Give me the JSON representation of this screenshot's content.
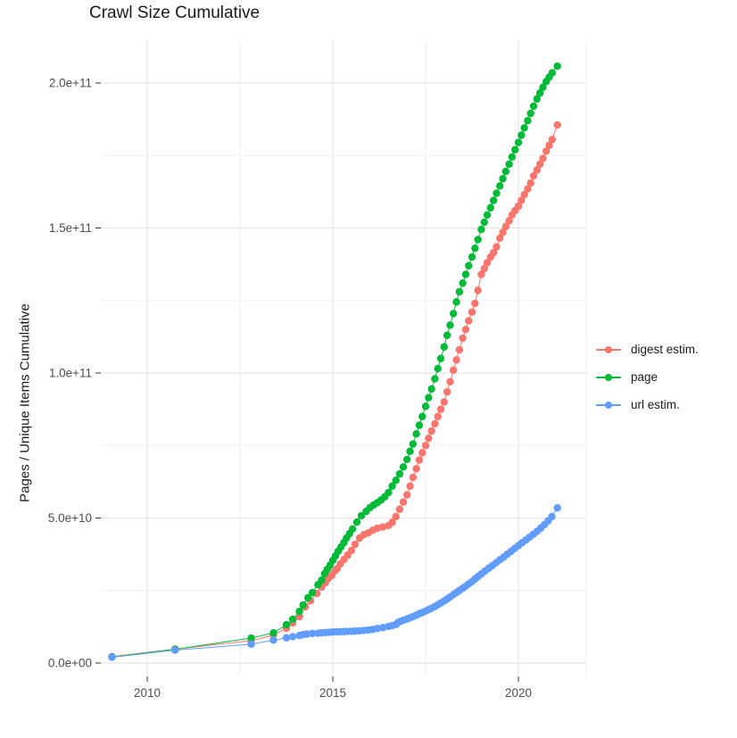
{
  "title": "Crawl Size Cumulative",
  "y_axis_title": "Pages / Unique Items Cumulative",
  "colors": {
    "digest": "#F8766D",
    "page": "#00BA38",
    "url": "#619CFF",
    "grid_major": "#E5E5E5",
    "grid_minor": "#F1F1F1",
    "tick": "#333333",
    "tick_label": "#4D4D4D",
    "background": "#FFFFFF"
  },
  "legend": {
    "items": [
      {
        "label": "digest estim.",
        "color": "#F8766D"
      },
      {
        "label": "page",
        "color": "#00BA38"
      },
      {
        "label": "url estim.",
        "color": "#619CFF"
      }
    ]
  },
  "axes": {
    "x": {
      "tick_labels": [
        "2010",
        "2015",
        "2020"
      ],
      "tick_values": [
        2010,
        2015,
        2020
      ],
      "minor_values": [
        2012.5,
        2017.5
      ]
    },
    "y": {
      "tick_labels": [
        "0.0e+00",
        "5.0e+10",
        "1.0e+11",
        "1.5e+11",
        "2.0e+11"
      ],
      "tick_values": [
        0,
        50,
        100,
        150,
        200
      ],
      "minor_values": [
        25,
        75,
        125,
        175
      ]
    }
  },
  "chart_data": {
    "type": "scatter",
    "title": "Crawl Size Cumulative",
    "xlabel": "",
    "ylabel": "Pages / Unique Items Cumulative",
    "unit": "billions of pages / unique items (1 = 1e9)",
    "x_range": [
      2008.75,
      2021.83
    ],
    "y_range_billions": [
      0,
      214
    ],
    "grid": true,
    "legend_position": "right",
    "series": [
      {
        "name": "digest estim.",
        "color": "#F8766D",
        "points": [
          [
            2009.05,
            2.2
          ],
          [
            2010.75,
            4.8
          ],
          [
            2012.8,
            7.7
          ],
          [
            2013.4,
            9.7
          ],
          [
            2013.75,
            12.0
          ],
          [
            2013.92,
            13.8
          ],
          [
            2014.1,
            16.0
          ],
          [
            2014.26,
            19.4
          ],
          [
            2014.4,
            21.5
          ],
          [
            2014.57,
            24.0
          ],
          [
            2014.7,
            26.2
          ],
          [
            2014.8,
            27.7
          ],
          [
            2014.88,
            29.2
          ],
          [
            2014.97,
            30.2
          ],
          [
            2015.05,
            31.7
          ],
          [
            2015.12,
            32.6
          ],
          [
            2015.2,
            34.2
          ],
          [
            2015.3,
            35.7
          ],
          [
            2015.4,
            37.2
          ],
          [
            2015.5,
            38.8
          ],
          [
            2015.6,
            40.9
          ],
          [
            2015.72,
            43.1
          ],
          [
            2015.84,
            44.3
          ],
          [
            2015.96,
            44.9
          ],
          [
            2016.08,
            45.8
          ],
          [
            2016.2,
            46.5
          ],
          [
            2016.35,
            46.9
          ],
          [
            2016.5,
            47.4
          ],
          [
            2016.6,
            48.5
          ],
          [
            2016.7,
            50.5
          ],
          [
            2016.8,
            53.0
          ],
          [
            2016.9,
            55.5
          ],
          [
            2017.0,
            58.0
          ],
          [
            2017.08,
            61.0
          ],
          [
            2017.16,
            64.0
          ],
          [
            2017.25,
            67.0
          ],
          [
            2017.33,
            70.0
          ],
          [
            2017.41,
            72.5
          ],
          [
            2017.5,
            75.0
          ],
          [
            2017.58,
            77.5
          ],
          [
            2017.66,
            80.0
          ],
          [
            2017.75,
            82.5
          ],
          [
            2017.83,
            85.0
          ],
          [
            2017.91,
            87.5
          ],
          [
            2018.0,
            90.0
          ],
          [
            2018.08,
            93.5
          ],
          [
            2018.16,
            97.0
          ],
          [
            2018.25,
            101.0
          ],
          [
            2018.33,
            104.5
          ],
          [
            2018.41,
            108.0
          ],
          [
            2018.5,
            112.0
          ],
          [
            2018.58,
            115.0
          ],
          [
            2018.66,
            118.0
          ],
          [
            2018.75,
            121.0
          ],
          [
            2018.83,
            124.0
          ],
          [
            2018.91,
            128.5
          ],
          [
            2019.0,
            134.0
          ],
          [
            2019.08,
            136.0
          ],
          [
            2019.16,
            138.0
          ],
          [
            2019.25,
            140.0
          ],
          [
            2019.33,
            141.5
          ],
          [
            2019.41,
            143.5
          ],
          [
            2019.5,
            146.5
          ],
          [
            2019.58,
            148.5
          ],
          [
            2019.66,
            150.5
          ],
          [
            2019.75,
            152.5
          ],
          [
            2019.83,
            154.5
          ],
          [
            2019.91,
            156.0
          ],
          [
            2020.0,
            157.5
          ],
          [
            2020.08,
            159.5
          ],
          [
            2020.16,
            161.5
          ],
          [
            2020.25,
            163.5
          ],
          [
            2020.33,
            165.5
          ],
          [
            2020.41,
            168.0
          ],
          [
            2020.5,
            170.0
          ],
          [
            2020.58,
            172.0
          ],
          [
            2020.66,
            174.0
          ],
          [
            2020.75,
            176.5
          ],
          [
            2020.83,
            178.5
          ],
          [
            2020.91,
            180.5
          ],
          [
            2021.05,
            185.5
          ]
        ]
      },
      {
        "name": "page",
        "color": "#00BA38",
        "points": [
          [
            2009.05,
            2.1
          ],
          [
            2010.75,
            4.75
          ],
          [
            2012.8,
            8.6
          ],
          [
            2013.4,
            10.4
          ],
          [
            2013.75,
            13.2
          ],
          [
            2013.92,
            15.1
          ],
          [
            2014.1,
            17.8
          ],
          [
            2014.2,
            20.0
          ],
          [
            2014.33,
            22.5
          ],
          [
            2014.45,
            24.3
          ],
          [
            2014.6,
            27.0
          ],
          [
            2014.7,
            28.6
          ],
          [
            2014.78,
            30.8
          ],
          [
            2014.85,
            32.3
          ],
          [
            2014.93,
            33.8
          ],
          [
            2015.0,
            35.4
          ],
          [
            2015.07,
            36.9
          ],
          [
            2015.14,
            38.5
          ],
          [
            2015.22,
            40.0
          ],
          [
            2015.3,
            41.5
          ],
          [
            2015.37,
            43.1
          ],
          [
            2015.45,
            44.6
          ],
          [
            2015.53,
            46.2
          ],
          [
            2015.65,
            48.6
          ],
          [
            2015.77,
            50.8
          ],
          [
            2015.9,
            52.3
          ],
          [
            2016.0,
            53.6
          ],
          [
            2016.1,
            54.5
          ],
          [
            2016.2,
            55.3
          ],
          [
            2016.3,
            56.2
          ],
          [
            2016.4,
            57.3
          ],
          [
            2016.5,
            58.8
          ],
          [
            2016.6,
            61.0
          ],
          [
            2016.7,
            63.0
          ],
          [
            2016.8,
            65.2
          ],
          [
            2016.9,
            67.6
          ],
          [
            2017.0,
            70.2
          ],
          [
            2017.08,
            73.0
          ],
          [
            2017.16,
            75.5
          ],
          [
            2017.25,
            79.0
          ],
          [
            2017.33,
            82.0
          ],
          [
            2017.41,
            85.0
          ],
          [
            2017.5,
            88.5
          ],
          [
            2017.58,
            91.5
          ],
          [
            2017.66,
            94.5
          ],
          [
            2017.75,
            98.0
          ],
          [
            2017.83,
            101.5
          ],
          [
            2017.91,
            105.0
          ],
          [
            2018.0,
            109.0
          ],
          [
            2018.08,
            113.0
          ],
          [
            2018.16,
            116.5
          ],
          [
            2018.25,
            120.5
          ],
          [
            2018.33,
            124.5
          ],
          [
            2018.41,
            128.0
          ],
          [
            2018.5,
            131.0
          ],
          [
            2018.58,
            134.0
          ],
          [
            2018.66,
            137.0
          ],
          [
            2018.75,
            140.0
          ],
          [
            2018.83,
            143.0
          ],
          [
            2018.91,
            146.0
          ],
          [
            2019.0,
            149.5
          ],
          [
            2019.08,
            152.0
          ],
          [
            2019.16,
            154.5
          ],
          [
            2019.25,
            157.0
          ],
          [
            2019.33,
            159.5
          ],
          [
            2019.41,
            162.0
          ],
          [
            2019.5,
            164.5
          ],
          [
            2019.58,
            167.0
          ],
          [
            2019.66,
            169.5
          ],
          [
            2019.75,
            172.0
          ],
          [
            2019.83,
            174.5
          ],
          [
            2019.91,
            177.0
          ],
          [
            2020.0,
            179.5
          ],
          [
            2020.08,
            182.0
          ],
          [
            2020.16,
            184.5
          ],
          [
            2020.25,
            187.0
          ],
          [
            2020.33,
            189.5
          ],
          [
            2020.41,
            192.0
          ],
          [
            2020.5,
            194.5
          ],
          [
            2020.58,
            196.5
          ],
          [
            2020.66,
            198.5
          ],
          [
            2020.75,
            200.5
          ],
          [
            2020.83,
            202.0
          ],
          [
            2020.91,
            203.5
          ],
          [
            2021.05,
            205.8
          ]
        ]
      },
      {
        "name": "url estim.",
        "color": "#619CFF",
        "points": [
          [
            2009.05,
            2.0
          ],
          [
            2010.75,
            4.45
          ],
          [
            2012.8,
            6.5
          ],
          [
            2013.4,
            7.9
          ],
          [
            2013.75,
            8.7
          ],
          [
            2013.92,
            9.1
          ],
          [
            2014.1,
            9.5
          ],
          [
            2014.2,
            9.8
          ],
          [
            2014.3,
            10.0
          ],
          [
            2014.45,
            10.2
          ],
          [
            2014.6,
            10.3
          ],
          [
            2014.7,
            10.4
          ],
          [
            2014.8,
            10.5
          ],
          [
            2014.9,
            10.6
          ],
          [
            2015.0,
            10.7
          ],
          [
            2015.1,
            10.75
          ],
          [
            2015.2,
            10.8
          ],
          [
            2015.3,
            10.85
          ],
          [
            2015.4,
            10.9
          ],
          [
            2015.5,
            10.95
          ],
          [
            2015.6,
            11.0
          ],
          [
            2015.72,
            11.1
          ],
          [
            2015.84,
            11.25
          ],
          [
            2015.96,
            11.4
          ],
          [
            2016.08,
            11.6
          ],
          [
            2016.2,
            11.9
          ],
          [
            2016.35,
            12.2
          ],
          [
            2016.5,
            12.6
          ],
          [
            2016.6,
            12.9
          ],
          [
            2016.7,
            13.3
          ],
          [
            2016.76,
            14.0
          ],
          [
            2016.83,
            14.4
          ],
          [
            2016.91,
            14.8
          ],
          [
            2017.0,
            15.2
          ],
          [
            2017.08,
            15.6
          ],
          [
            2017.16,
            16.0
          ],
          [
            2017.25,
            16.5
          ],
          [
            2017.33,
            17.0
          ],
          [
            2017.41,
            17.4
          ],
          [
            2017.5,
            17.9
          ],
          [
            2017.58,
            18.4
          ],
          [
            2017.66,
            18.9
          ],
          [
            2017.75,
            19.5
          ],
          [
            2017.83,
            20.1
          ],
          [
            2017.91,
            20.7
          ],
          [
            2018.0,
            21.4
          ],
          [
            2018.08,
            22.1
          ],
          [
            2018.16,
            22.8
          ],
          [
            2018.25,
            23.6
          ],
          [
            2018.33,
            24.3
          ],
          [
            2018.41,
            25.0
          ],
          [
            2018.5,
            25.8
          ],
          [
            2018.58,
            26.5
          ],
          [
            2018.66,
            27.3
          ],
          [
            2018.75,
            28.1
          ],
          [
            2018.83,
            29.0
          ],
          [
            2018.91,
            29.8
          ],
          [
            2019.0,
            30.7
          ],
          [
            2019.1,
            31.7
          ],
          [
            2019.2,
            32.7
          ],
          [
            2019.3,
            33.6
          ],
          [
            2019.4,
            34.6
          ],
          [
            2019.5,
            35.6
          ],
          [
            2019.6,
            36.5
          ],
          [
            2019.7,
            37.5
          ],
          [
            2019.8,
            38.5
          ],
          [
            2019.9,
            39.5
          ],
          [
            2020.0,
            40.5
          ],
          [
            2020.1,
            41.5
          ],
          [
            2020.2,
            42.4
          ],
          [
            2020.3,
            43.4
          ],
          [
            2020.4,
            44.4
          ],
          [
            2020.5,
            45.4
          ],
          [
            2020.6,
            46.5
          ],
          [
            2020.7,
            47.7
          ],
          [
            2020.8,
            49.0
          ],
          [
            2020.9,
            50.5
          ],
          [
            2021.05,
            53.5
          ]
        ]
      }
    ]
  }
}
